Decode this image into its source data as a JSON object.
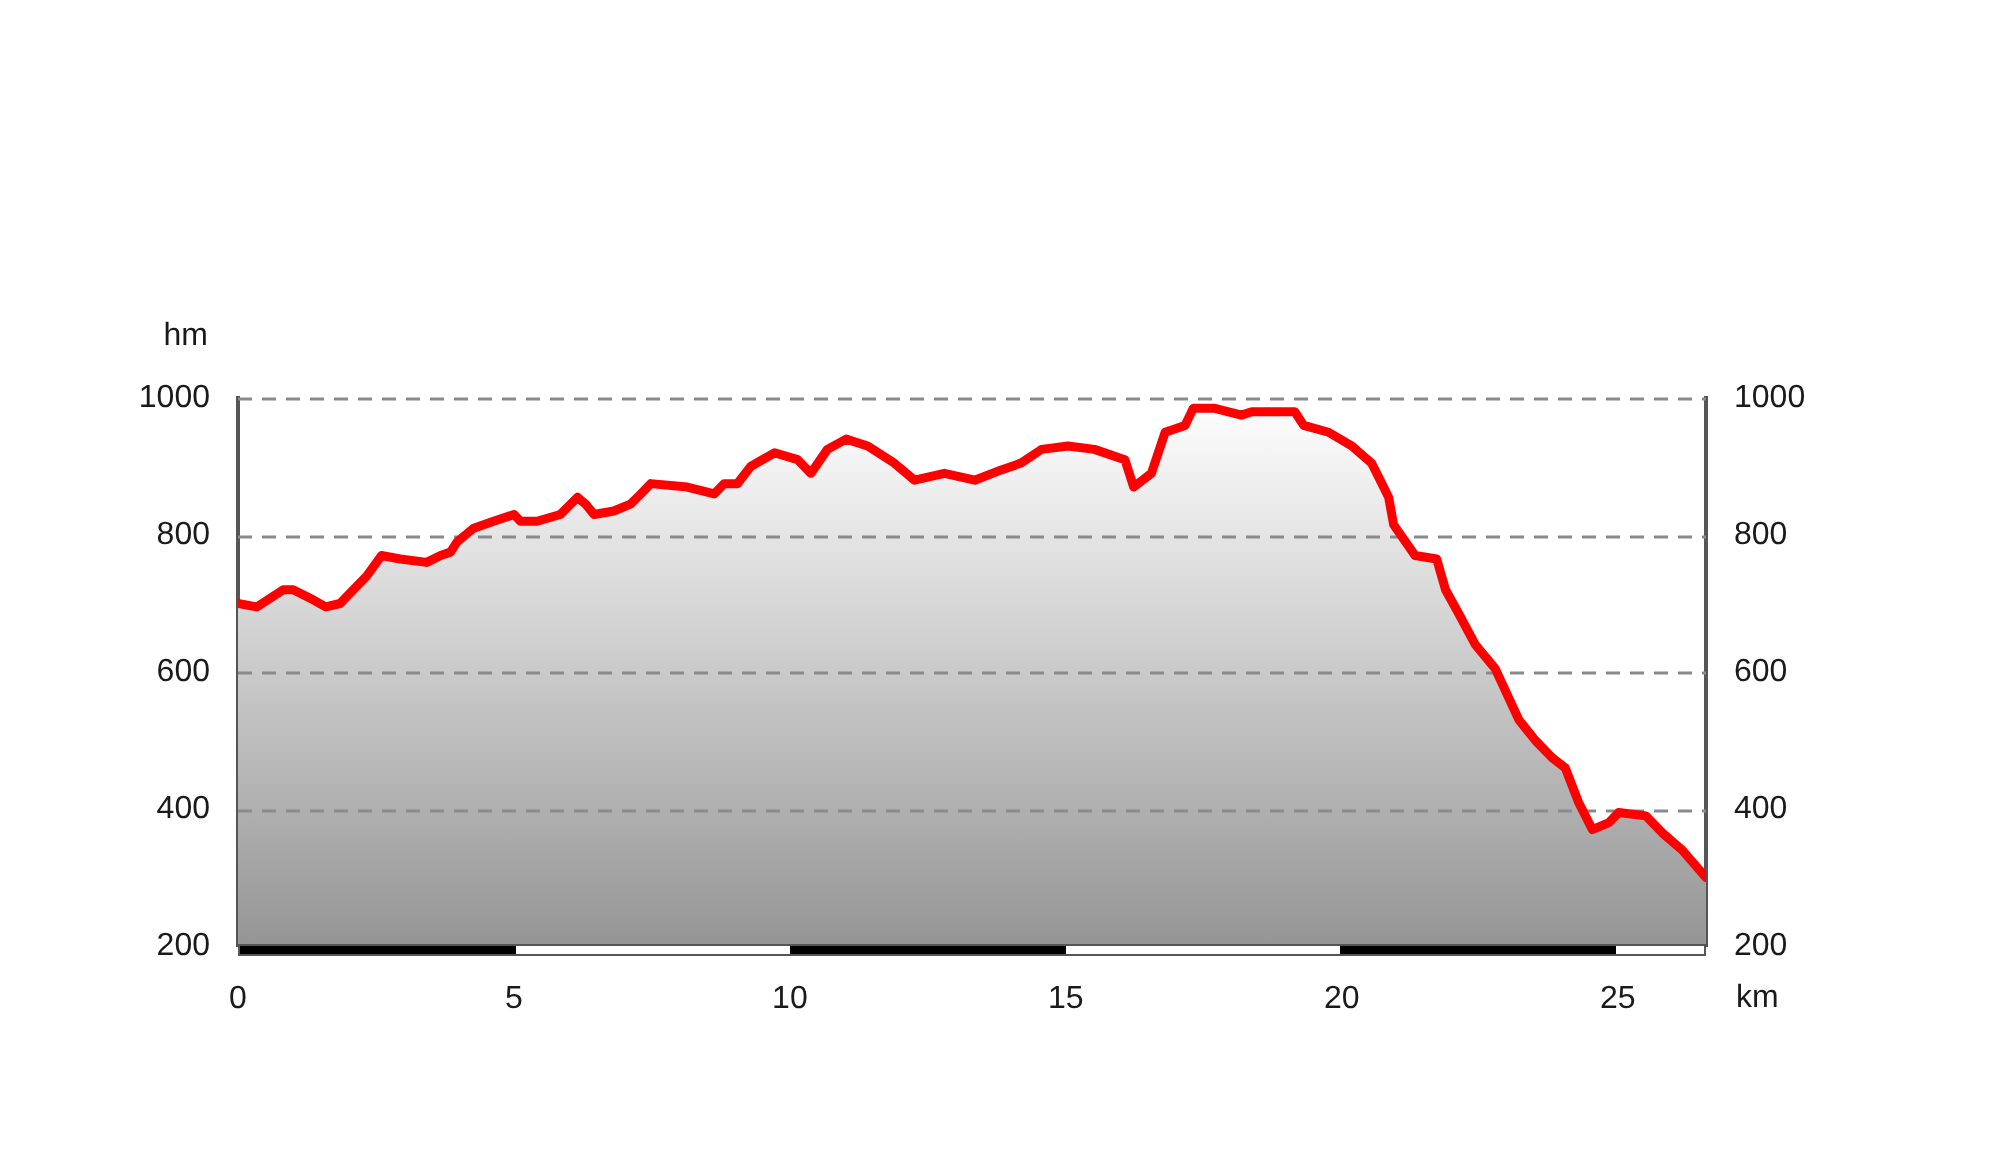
{
  "chart_data": {
    "type": "area",
    "xlabel": "km",
    "ylabel": "hm",
    "x": [
      0,
      0.34,
      0.82,
      1.0,
      1.37,
      1.59,
      1.85,
      2.03,
      2.33,
      2.6,
      2.94,
      3.42,
      3.67,
      3.85,
      3.97,
      4.27,
      4.63,
      5.0,
      5.12,
      5.42,
      5.84,
      6.15,
      6.3,
      6.45,
      6.81,
      7.11,
      7.3,
      7.48,
      8.14,
      8.63,
      8.81,
      9.05,
      9.29,
      9.72,
      10.14,
      10.38,
      10.68,
      11.02,
      11.41,
      11.89,
      12.26,
      12.8,
      13.35,
      13.83,
      14.19,
      14.56,
      15.04,
      15.52,
      16.07,
      16.23,
      16.55,
      16.8,
      17.16,
      17.31,
      17.7,
      18.18,
      18.37,
      18.61,
      19.15,
      19.31,
      19.76,
      20.18,
      20.54,
      20.85,
      20.94,
      21.33,
      21.72,
      21.88,
      22.12,
      22.42,
      22.78,
      23.21,
      23.51,
      23.81,
      24.05,
      24.29,
      24.54,
      24.84,
      25.02,
      25.51,
      25.81,
      26.17,
      26.6
    ],
    "series": [
      {
        "color": "#ff0000",
        "values": [
          700,
          695,
          720,
          720,
          705,
          695,
          700,
          715,
          740,
          770,
          765,
          760,
          770,
          775,
          790,
          810,
          820,
          830,
          820,
          820,
          830,
          855,
          845,
          830,
          835,
          845,
          860,
          875,
          870,
          860,
          875,
          875,
          900,
          920,
          910,
          890,
          925,
          940,
          930,
          905,
          880,
          890,
          880,
          895,
          905,
          925,
          930,
          925,
          910,
          870,
          890,
          950,
          960,
          985,
          985,
          975,
          980,
          980,
          980,
          960,
          950,
          930,
          905,
          855,
          815,
          770,
          765,
          720,
          685,
          640,
          605,
          530,
          500,
          475,
          460,
          410,
          370,
          380,
          395,
          390,
          365,
          340,
          300
        ]
      }
    ],
    "xlim": [
      0,
      26.6
    ],
    "xticks": [
      0,
      5,
      10,
      15,
      20,
      25
    ],
    "ylim": [
      200,
      1000
    ],
    "yticks": [
      200,
      400,
      600,
      800,
      1000
    ],
    "y2lim": [
      200,
      1000
    ],
    "y2ticks": [
      200,
      400,
      600,
      800,
      1000
    ],
    "grid": "y",
    "legend": false,
    "marker": "none",
    "line_style": "solid"
  }
}
